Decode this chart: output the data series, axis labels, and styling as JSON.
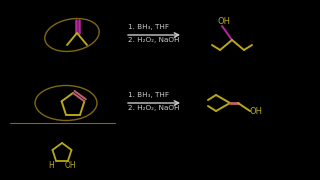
{
  "bg_color": "#000000",
  "arrow_color": "#cccccc",
  "text_color": "#cccccc",
  "reaction1_text_1": "1. BH₃, THF",
  "reaction1_text_2": "2. H₂O₂, NaOH",
  "reaction2_text_1": "1. BH₃, THF",
  "reaction2_text_2": "2. H₂O₂, NaOH",
  "yellow_green": "#b8a818",
  "magenta": "#b828a0",
  "pink": "#c06070",
  "dark_yg": "#806810"
}
